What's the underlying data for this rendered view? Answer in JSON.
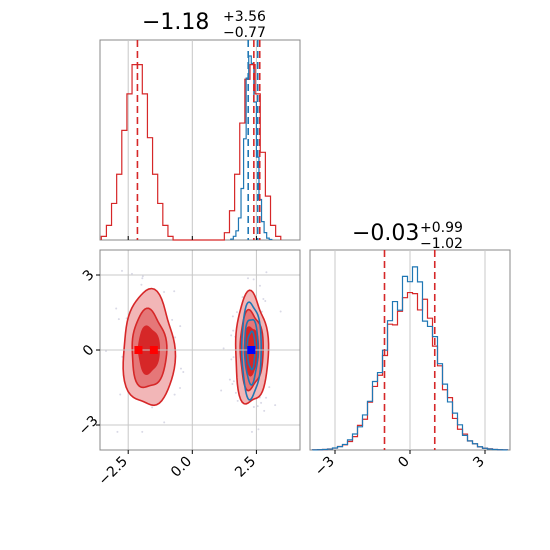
{
  "chart_data": [
    {
      "panel": "marginal-x",
      "type": "histogram",
      "title_main": "−1.18",
      "title_sup": "+3.56",
      "title_sub": "−0.77",
      "xlim": [
        -3.6,
        4.2
      ],
      "colors": {
        "red": "#d62728",
        "blue": "#1f77b4"
      },
      "series": [
        {
          "color": "red",
          "bins": [
            -3.45,
            -3.25,
            -3.05,
            -2.85,
            -2.65,
            -2.45,
            -2.25,
            -2.05,
            -1.85,
            -1.65,
            -1.45,
            -1.25,
            -1.05,
            -0.85,
            -0.65,
            -0.45,
            -0.25,
            -0.05,
            0.15,
            0.35,
            0.55,
            0.75,
            0.95,
            1.15,
            1.35,
            1.55,
            1.75,
            1.95,
            2.15,
            2.35,
            2.55,
            2.75,
            2.95,
            3.15,
            3.35
          ],
          "values": [
            0.5,
            2,
            5,
            9,
            15,
            20,
            24,
            24,
            20,
            14,
            9,
            5,
            2,
            0.5,
            0,
            0,
            0,
            0,
            0,
            0,
            0,
            0,
            0,
            0,
            1,
            4,
            9,
            16,
            22,
            24,
            20,
            12,
            6,
            2,
            0.5
          ]
        },
        {
          "color": "blue",
          "bins": [
            1.55,
            1.65,
            1.75,
            1.85,
            1.95,
            2.05,
            2.15,
            2.25,
            2.35,
            2.45,
            2.55,
            2.65,
            2.75,
            2.85,
            2.95,
            3.05
          ],
          "values": [
            0.5,
            2,
            5,
            12,
            28,
            55,
            88,
            100,
            96,
            75,
            45,
            22,
            10,
            4,
            1,
            0.3
          ]
        }
      ],
      "quantiles": {
        "red": [
          -2.14,
          2.4,
          2.63
        ],
        "blue": [
          2.18,
          2.55
        ]
      }
    },
    {
      "panel": "joint",
      "type": "contour",
      "xlim": [
        -3.6,
        4.2
      ],
      "ylim": [
        -4.0,
        4.0
      ],
      "xticks": [
        "−2.5",
        "0.0",
        "2.5"
      ],
      "yticks": [
        "3",
        "0",
        "−3"
      ],
      "red_modes": [
        {
          "x": -1.7,
          "y": 0.0,
          "sx": 0.5,
          "sy": 1.15
        },
        {
          "x": 2.3,
          "y": 0.0,
          "sx": 0.32,
          "sy": 1.1
        }
      ],
      "blue_mode": {
        "x": 2.3,
        "y": 0.0,
        "sx": 0.2,
        "sy": 1.0
      },
      "markers": {
        "red": [
          [
            -2.1,
            0.0
          ],
          [
            -1.5,
            0.0
          ]
        ],
        "blue": [
          2.3,
          0.0
        ]
      }
    },
    {
      "panel": "marginal-y",
      "type": "histogram",
      "title_main": "−0.03",
      "title_sup": "+0.99",
      "title_sub": "−1.02",
      "xlim": [
        -4.0,
        4.0
      ],
      "xticks": [
        "−3",
        "0",
        "3"
      ],
      "series": [
        {
          "color": "red",
          "mean": 0.0,
          "sd": 1.0,
          "seed": 3
        },
        {
          "color": "blue",
          "mean": 0.0,
          "sd": 1.0,
          "seed": 7
        }
      ],
      "quantiles": {
        "red": [
          -1.02,
          0.99
        ]
      }
    }
  ]
}
